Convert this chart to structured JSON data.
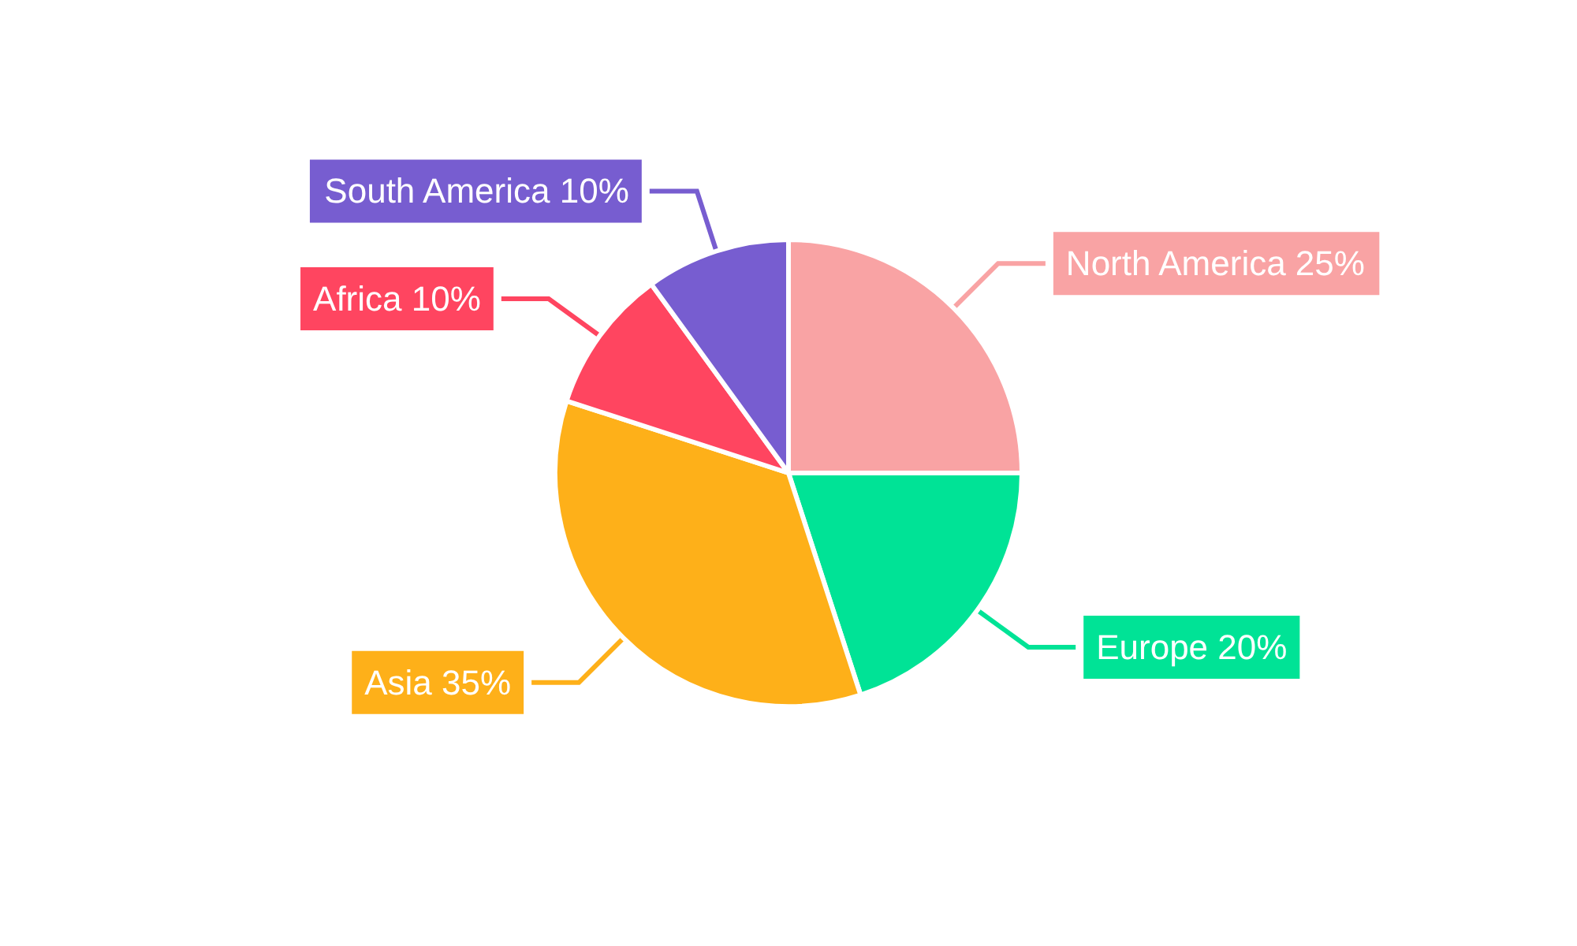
{
  "chart_data": {
    "type": "pie",
    "categories": [
      "North America",
      "Europe",
      "Asia",
      "Africa",
      "South America"
    ],
    "values": [
      25,
      20,
      35,
      10,
      10
    ],
    "colors": [
      "#f9a3a4",
      "#00e396",
      "#feb019",
      "#ff4560",
      "#775dd0"
    ],
    "value_labels": [
      "25%",
      "20%",
      "35%",
      "10%",
      "10%"
    ],
    "legend": false
  }
}
